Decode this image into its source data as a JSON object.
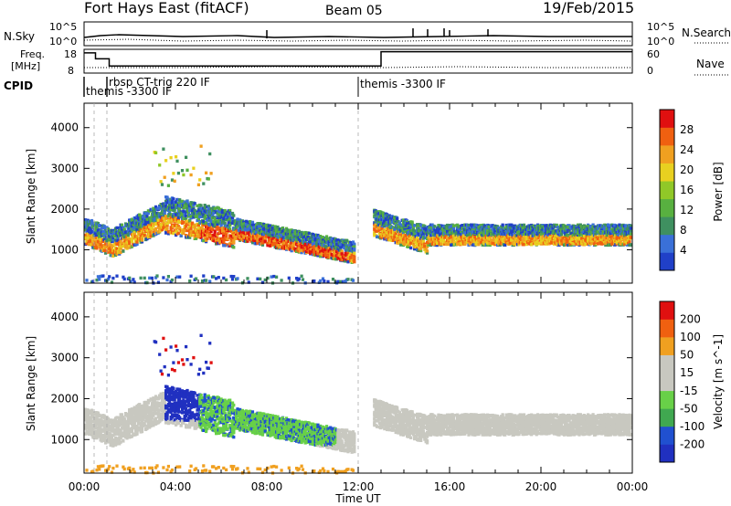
{
  "header": {
    "site": "Fort Hays East (fitACF)",
    "beam": "Beam 05",
    "date": "19/Feb/2015"
  },
  "summary_panels": {
    "nsky_label": "N.Sky",
    "nsky_ticks": [
      "10^5",
      "10^0"
    ],
    "nsearch_label": "N.Search",
    "nsearch_ticks": [
      "10^5",
      "10^0"
    ],
    "freq_label_1": "Freq.",
    "freq_label_2": "[MHz]",
    "freq_ticks": [
      "18",
      "8"
    ],
    "nave_label": "Nave",
    "nave_ticks": [
      "60",
      "0"
    ],
    "cpid_label": "CPID",
    "cpid_segments": [
      "rbsp CT-trig 220 IF",
      "themis -3300 IF",
      "themis -3300 IF"
    ],
    "freq_steps": [
      {
        "t": 0.0,
        "mhz": 16.5
      },
      {
        "t": 0.5,
        "mhz": 14.0
      },
      {
        "t": 1.1,
        "mhz": 11.0
      },
      {
        "t": 13.0,
        "mhz": 17.0
      },
      {
        "t": 24.0,
        "mhz": 17.0
      }
    ]
  },
  "chart_data": [
    {
      "type": "heatmap",
      "title": "Power",
      "xlabel": "Time UT",
      "ylabel": "Slant Range [km]",
      "xlim": [
        0,
        24
      ],
      "ylim": [
        180,
        4600
      ],
      "x_ticks": [
        "00:00",
        "04:00",
        "08:00",
        "12:00",
        "16:00",
        "20:00",
        "00:00"
      ],
      "y_ticks": [
        "1000",
        "2000",
        "3000",
        "4000"
      ],
      "colorbar_label": "Power [dB]",
      "colorbar_ticks": [
        "28",
        "24",
        "20",
        "16",
        "12",
        "8",
        "4"
      ],
      "colorbar_range": [
        0,
        32
      ]
    },
    {
      "type": "heatmap",
      "title": "Velocity",
      "xlabel": "Time UT",
      "ylabel": "Slant Range [km]",
      "xlim": [
        0,
        24
      ],
      "ylim": [
        180,
        4600
      ],
      "x_ticks": [
        "00:00",
        "04:00",
        "08:00",
        "12:00",
        "16:00",
        "20:00",
        "00:00"
      ],
      "y_ticks": [
        "1000",
        "2000",
        "3000",
        "4000"
      ],
      "colorbar_label": "Velocity [m s^-1]",
      "colorbar_ticks": [
        "200",
        "100",
        "50",
        "15",
        "-15",
        "-50",
        "-100",
        "-200"
      ]
    }
  ],
  "axis": {
    "time_label": "Time UT"
  },
  "colors": {
    "power_scale": [
      "#2040c8",
      "#3a70d8",
      "#3f9060",
      "#58b040",
      "#90c828",
      "#e8d020",
      "#f0a020",
      "#f06010",
      "#e01010"
    ],
    "velocity_scale": [
      "#e01010",
      "#f06010",
      "#f0a020",
      "#c8c8c0",
      "#c8c8c0",
      "#68d048",
      "#40a850",
      "#2050d0",
      "#2030c0"
    ],
    "ground_scatter": "#c8c8c0"
  }
}
